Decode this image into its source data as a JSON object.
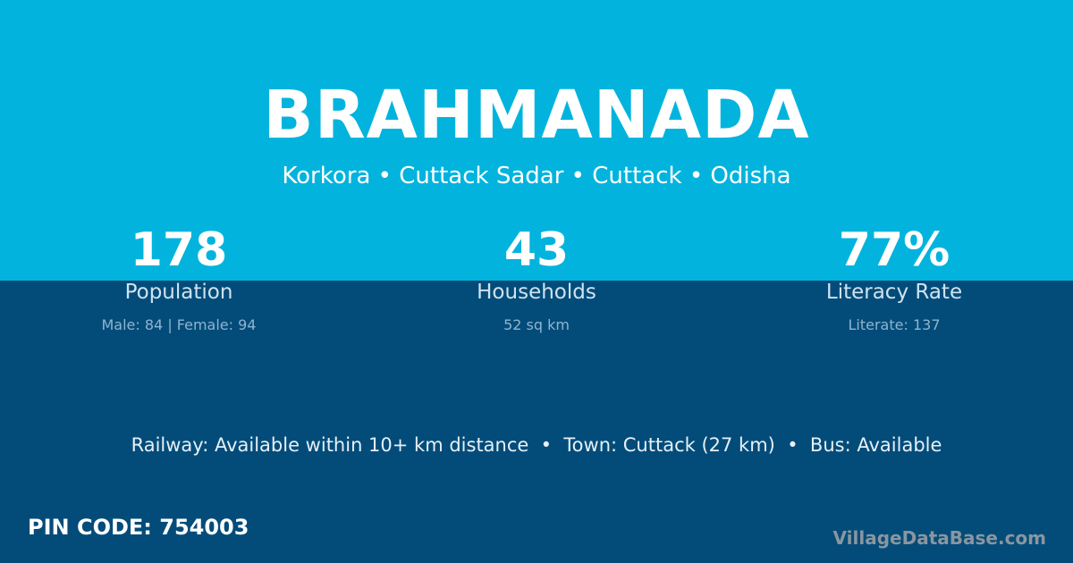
{
  "village": {
    "name": "BRAHMANADA",
    "location": "Korkora • Cuttack Sadar • Cuttack • Odisha"
  },
  "stats": [
    {
      "value": "178",
      "label": "Population",
      "detail": "Male: 84 | Female: 94"
    },
    {
      "value": "43",
      "label": "Households",
      "detail": "52 sq km"
    },
    {
      "value": "77%",
      "label": "Literacy Rate",
      "detail": "Literate: 137"
    }
  ],
  "facilities": "Railway: Available within 10+ km distance  •  Town: Cuttack (27 km)  •  Bus: Available",
  "pin": "PIN CODE: 754003",
  "brand": "VillageDataBase.com",
  "colors": {
    "top": "#02b4dd",
    "bottom": "#034c7a"
  }
}
